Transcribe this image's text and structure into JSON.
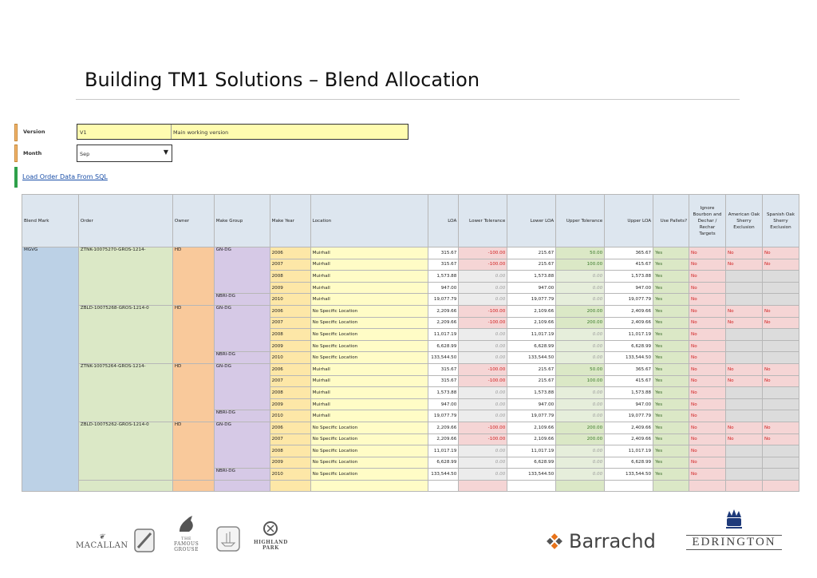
{
  "page": {
    "title": "Building TM1 Solutions – Blend Allocation"
  },
  "params": {
    "version_label": "Version",
    "version_value": "V1",
    "version_desc": "Main working version",
    "month_label": "Month",
    "month_value": "Sep",
    "load_link": "Load Order Data From SQL"
  },
  "colors": {
    "accent_green": "#2ea04a",
    "link": "#1a4fa8",
    "negative": "#d02020"
  },
  "table": {
    "headers": [
      "Blend Mark",
      "Order",
      "Owner",
      "Make Group",
      "Make Year",
      "Location",
      "LOA",
      "Lower Tolerance",
      "Lower LOA",
      "Upper Tolerance",
      "Upper LOA",
      "Use Pallets?",
      "Ignore Bourbon and Dechar / Rechar Targets",
      "American Oak Sherry Exclusion",
      "Spanish Oak Sherry Exclusion"
    ],
    "blend_mark": "MGVG",
    "groups": [
      {
        "order": "ZTNK-10075270-GROS-1214-",
        "owner": "HD",
        "rows": [
          {
            "mg": "GN-DG",
            "year": "2006",
            "loc": "Muirhall",
            "loa": "315.67",
            "lt": "-100.00",
            "lloa": "215.67",
            "ut": "50.00",
            "uloa": "365.67",
            "pal": "Yes",
            "ig": "No",
            "am": "No",
            "sp": "No"
          },
          {
            "mg": "",
            "year": "2007",
            "loc": "Muirhall",
            "loa": "315.67",
            "lt": "-100.00",
            "lloa": "215.67",
            "ut": "100.00",
            "uloa": "415.67",
            "pal": "Yes",
            "ig": "No",
            "am": "No",
            "sp": "No"
          },
          {
            "mg": "",
            "year": "2008",
            "loc": "Muirhall",
            "loa": "1,573.88",
            "lt": "0.00",
            "lloa": "1,573.88",
            "ut": "0.00",
            "uloa": "1,573.88",
            "pal": "Yes",
            "ig": "No",
            "am": "",
            "sp": ""
          },
          {
            "mg": "",
            "year": "2009",
            "loc": "Muirhall",
            "loa": "947.00",
            "lt": "0.00",
            "lloa": "947.00",
            "ut": "0.00",
            "uloa": "947.00",
            "pal": "Yes",
            "ig": "No",
            "am": "",
            "sp": ""
          },
          {
            "mg": "NBRI-DG",
            "year": "2010",
            "loc": "Muirhall",
            "loa": "19,077.79",
            "lt": "0.00",
            "lloa": "19,077.79",
            "ut": "0.00",
            "uloa": "19,077.79",
            "pal": "Yes",
            "ig": "No",
            "am": "",
            "sp": ""
          }
        ]
      },
      {
        "order": "ZBLD-10075268-GROS-1214-0",
        "owner": "HD",
        "rows": [
          {
            "mg": "GN-DG",
            "year": "2006",
            "loc": "No Specific Location",
            "loa": "2,209.66",
            "lt": "-100.00",
            "lloa": "2,109.66",
            "ut": "200.00",
            "uloa": "2,409.66",
            "pal": "Yes",
            "ig": "No",
            "am": "No",
            "sp": "No"
          },
          {
            "mg": "",
            "year": "2007",
            "loc": "No Specific Location",
            "loa": "2,209.66",
            "lt": "-100.00",
            "lloa": "2,109.66",
            "ut": "200.00",
            "uloa": "2,409.66",
            "pal": "Yes",
            "ig": "No",
            "am": "No",
            "sp": "No"
          },
          {
            "mg": "",
            "year": "2008",
            "loc": "No Specific Location",
            "loa": "11,017.19",
            "lt": "0.00",
            "lloa": "11,017.19",
            "ut": "0.00",
            "uloa": "11,017.19",
            "pal": "Yes",
            "ig": "No",
            "am": "",
            "sp": ""
          },
          {
            "mg": "",
            "year": "2009",
            "loc": "No Specific Location",
            "loa": "6,628.99",
            "lt": "0.00",
            "lloa": "6,628.99",
            "ut": "0.00",
            "uloa": "6,628.99",
            "pal": "Yes",
            "ig": "No",
            "am": "",
            "sp": ""
          },
          {
            "mg": "NBRI-DG",
            "year": "2010",
            "loc": "No Specific Location",
            "loa": "133,544.50",
            "lt": "0.00",
            "lloa": "133,544.50",
            "ut": "0.00",
            "uloa": "133,544.50",
            "pal": "Yes",
            "ig": "No",
            "am": "",
            "sp": ""
          }
        ]
      },
      {
        "order": "ZTNK-10075264-GROS-1214-",
        "owner": "HD",
        "rows": [
          {
            "mg": "GN-DG",
            "year": "2006",
            "loc": "Muirhall",
            "loa": "315.67",
            "lt": "-100.00",
            "lloa": "215.67",
            "ut": "50.00",
            "uloa": "365.67",
            "pal": "Yes",
            "ig": "No",
            "am": "No",
            "sp": "No"
          },
          {
            "mg": "",
            "year": "2007",
            "loc": "Muirhall",
            "loa": "315.67",
            "lt": "-100.00",
            "lloa": "215.67",
            "ut": "100.00",
            "uloa": "415.67",
            "pal": "Yes",
            "ig": "No",
            "am": "No",
            "sp": "No"
          },
          {
            "mg": "",
            "year": "2008",
            "loc": "Muirhall",
            "loa": "1,573.88",
            "lt": "0.00",
            "lloa": "1,573.88",
            "ut": "0.00",
            "uloa": "1,573.88",
            "pal": "Yes",
            "ig": "No",
            "am": "",
            "sp": ""
          },
          {
            "mg": "",
            "year": "2009",
            "loc": "Muirhall",
            "loa": "947.00",
            "lt": "0.00",
            "lloa": "947.00",
            "ut": "0.00",
            "uloa": "947.00",
            "pal": "Yes",
            "ig": "No",
            "am": "",
            "sp": ""
          },
          {
            "mg": "NBRI-DG",
            "year": "2010",
            "loc": "Muirhall",
            "loa": "19,077.79",
            "lt": "0.00",
            "lloa": "19,077.79",
            "ut": "0.00",
            "uloa": "19,077.79",
            "pal": "Yes",
            "ig": "No",
            "am": "",
            "sp": ""
          }
        ]
      },
      {
        "order": "ZBLD-10075262-GROS-1214-0",
        "owner": "HD",
        "rows": [
          {
            "mg": "GN-DG",
            "year": "2006",
            "loc": "No Specific Location",
            "loa": "2,209.66",
            "lt": "-100.00",
            "lloa": "2,109.66",
            "ut": "200.00",
            "uloa": "2,409.66",
            "pal": "Yes",
            "ig": "No",
            "am": "No",
            "sp": "No"
          },
          {
            "mg": "",
            "year": "2007",
            "loc": "No Specific Location",
            "loa": "2,209.66",
            "lt": "-100.00",
            "lloa": "2,109.66",
            "ut": "200.00",
            "uloa": "2,409.66",
            "pal": "Yes",
            "ig": "No",
            "am": "No",
            "sp": "No"
          },
          {
            "mg": "",
            "year": "2008",
            "loc": "No Specific Location",
            "loa": "11,017.19",
            "lt": "0.00",
            "lloa": "11,017.19",
            "ut": "0.00",
            "uloa": "11,017.19",
            "pal": "Yes",
            "ig": "No",
            "am": "",
            "sp": ""
          },
          {
            "mg": "",
            "year": "2009",
            "loc": "No Specific Location",
            "loa": "6,628.99",
            "lt": "0.00",
            "lloa": "6,628.99",
            "ut": "0.00",
            "uloa": "6,628.99",
            "pal": "Yes",
            "ig": "No",
            "am": "",
            "sp": ""
          },
          {
            "mg": "NBRI-DG",
            "year": "2010",
            "loc": "No Specific Location",
            "loa": "133,544.50",
            "lt": "0.00",
            "lloa": "133,544.50",
            "ut": "0.00",
            "uloa": "133,544.50",
            "pal": "Yes",
            "ig": "No",
            "am": "",
            "sp": ""
          }
        ]
      }
    ]
  },
  "footer": {
    "macallan": "MACALLAN",
    "famous_grouse_line1": "THE",
    "famous_grouse_line2": "FAMOUS",
    "famous_grouse_line3": "GROUSE",
    "highland_park_line1": "HIGHLAND",
    "highland_park_line2": "PARK",
    "barrachd": "Barrachd",
    "edrington": "EDRINGTON"
  }
}
